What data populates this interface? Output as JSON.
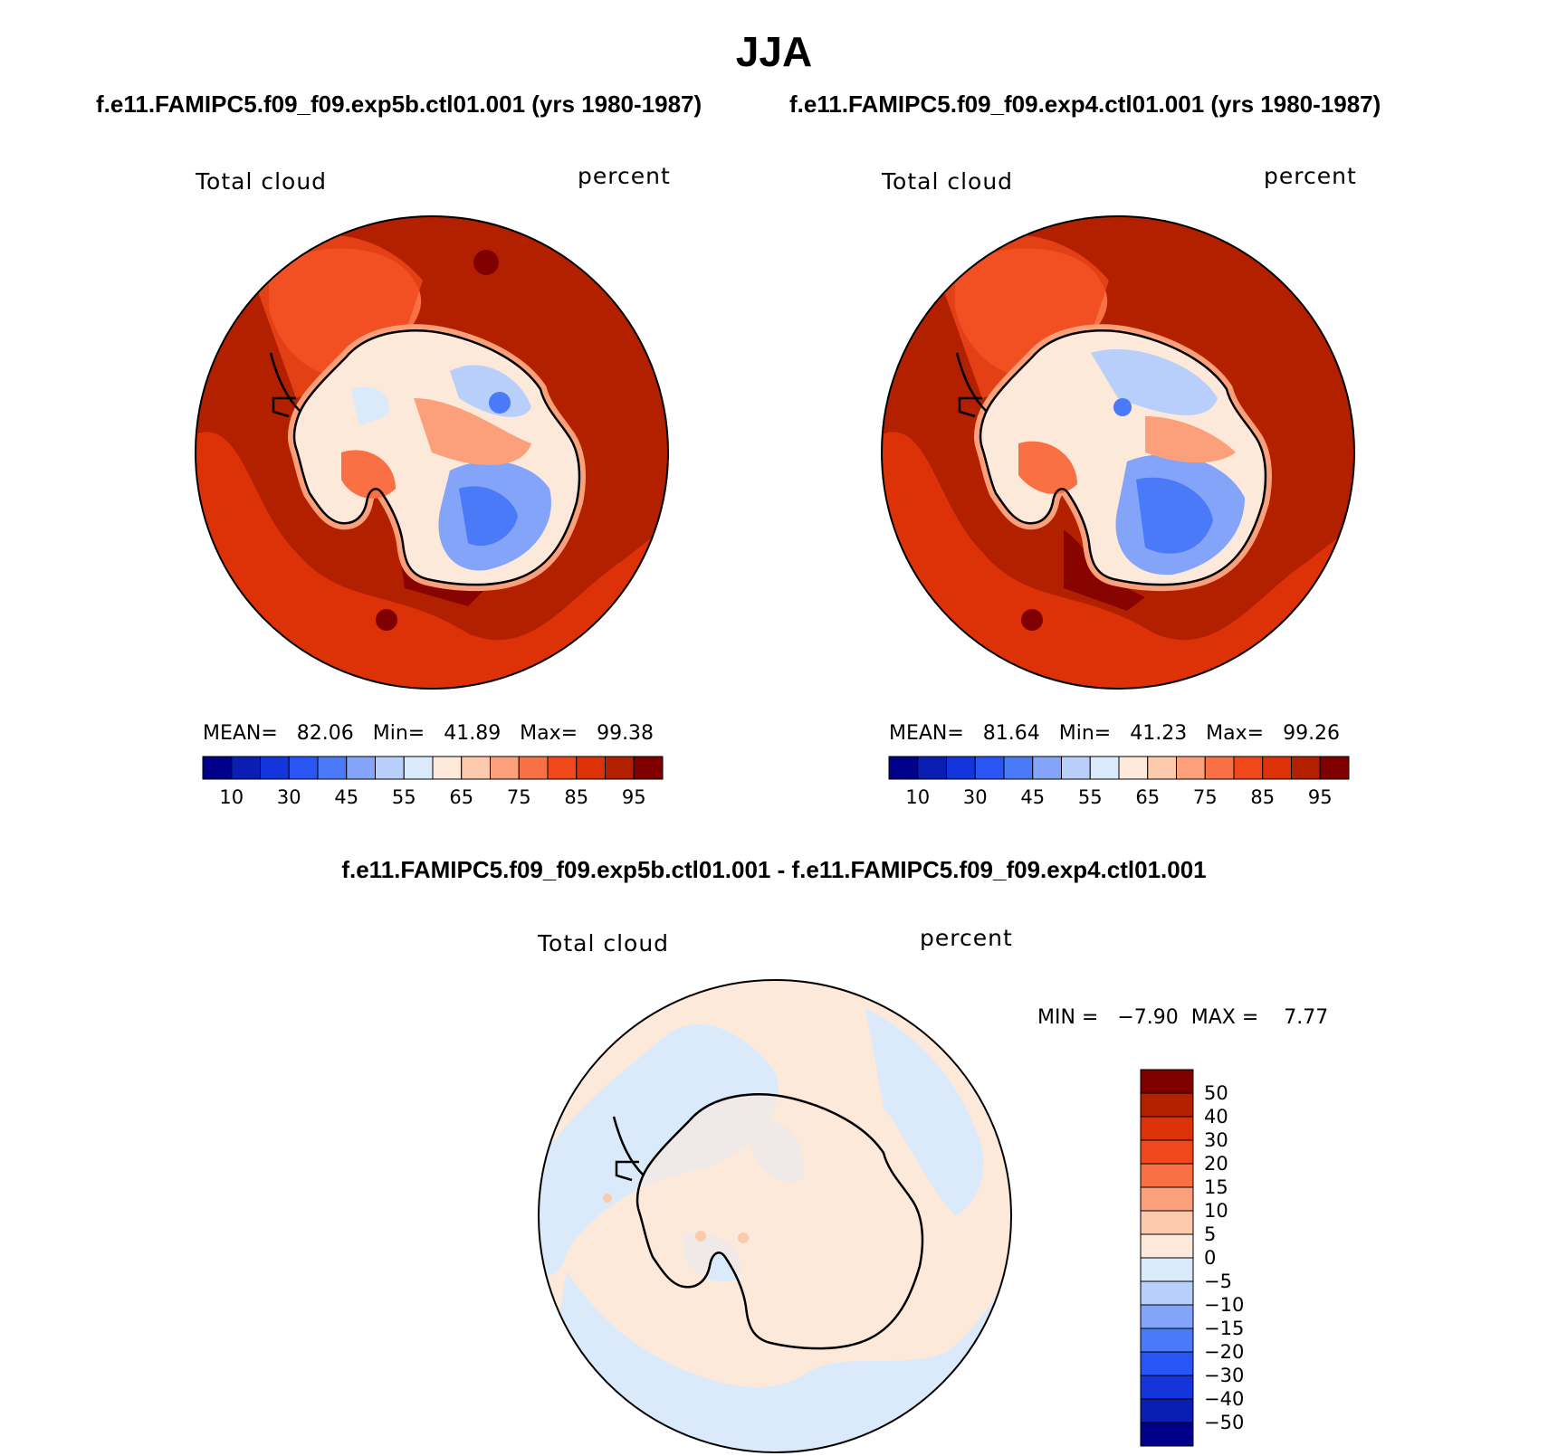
{
  "figure": {
    "title": "JJA",
    "left_case": "f.e11.FAMIPC5.f09_f09.exp5b.ctl01.001 (yrs 1980-1987)",
    "right_case": "f.e11.FAMIPC5.f09_f09.exp4.ctl01.001 (yrs 1980-1987)",
    "diff_title": "f.e11.FAMIPC5.f09_f09.exp5b.ctl01.001 - f.e11.FAMIPC5.f09_f09.exp4.ctl01.001"
  },
  "panels": {
    "left": {
      "variable": "Total cloud",
      "units": "percent",
      "stats_text": "MEAN=   82.06   Min=   41.89   Max=   99.38"
    },
    "right": {
      "variable": "Total cloud",
      "units": "percent",
      "stats_text": "MEAN=   81.64   Min=   41.23   Max=   99.26"
    },
    "diff": {
      "variable": "Total cloud",
      "units": "percent",
      "stats_text": "MIN =   −7.90  MAX =    7.77"
    }
  },
  "colorbars": {
    "abs_colors": [
      "#00008b",
      "#0a1eb4",
      "#1434dc",
      "#2a55f5",
      "#4a7af7",
      "#84a4f9",
      "#b8cefb",
      "#daeafb",
      "#fde9da",
      "#fcc9ad",
      "#fba07a",
      "#f87044",
      "#f0481a",
      "#dd3208",
      "#b22000",
      "#800000"
    ],
    "abs_ticks": [
      "10",
      "30",
      "45",
      "55",
      "65",
      "75",
      "85",
      "95"
    ],
    "diff_colors": [
      "#00008b",
      "#0a1eb4",
      "#1434dc",
      "#2a55f5",
      "#4a7af7",
      "#84a4f9",
      "#b8cefb",
      "#daeafb",
      "#fde9da",
      "#fcc9ad",
      "#fba07a",
      "#f87044",
      "#f0481a",
      "#dd3208",
      "#b22000",
      "#800000"
    ],
    "diff_ticks": [
      "50",
      "40",
      "30",
      "20",
      "15",
      "10",
      "5",
      "0",
      "−5",
      "−10",
      "−15",
      "−20",
      "−30",
      "−40",
      "−50"
    ]
  }
}
